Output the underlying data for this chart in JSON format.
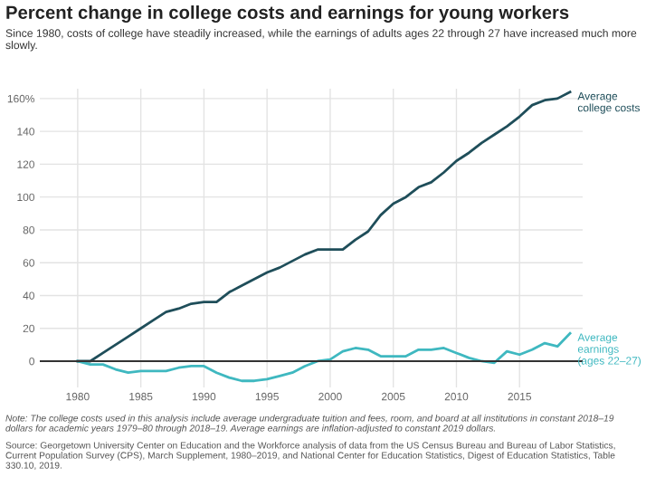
{
  "chart_data": {
    "type": "line",
    "title": "Percent change in college costs and earnings for young workers",
    "subtitle": "Since 1980, costs of college have steadily increased, while the earnings of adults ages 22 through 27 have increased much more slowly.",
    "x": [
      1980,
      1981,
      1982,
      1983,
      1984,
      1985,
      1986,
      1987,
      1988,
      1989,
      1990,
      1991,
      1992,
      1993,
      1994,
      1995,
      1996,
      1997,
      1998,
      1999,
      2000,
      2001,
      2002,
      2003,
      2004,
      2005,
      2006,
      2007,
      2008,
      2009,
      2010,
      2011,
      2012,
      2013,
      2014,
      2015,
      2016,
      2017,
      2018,
      2019
    ],
    "series": [
      {
        "name": "Average college costs",
        "color": "#1f4e5a",
        "values": [
          0,
          0,
          5,
          10,
          15,
          20,
          25,
          30,
          32,
          35,
          36,
          36,
          42,
          46,
          50,
          54,
          57,
          61,
          65,
          68,
          68,
          68,
          74,
          79,
          89,
          96,
          100,
          106,
          109,
          115,
          122,
          127,
          133,
          138,
          143,
          149,
          156,
          159,
          160,
          164
        ]
      },
      {
        "name": "Average earnings (ages 22–27)",
        "color": "#3fb8c0",
        "values": [
          0,
          -2,
          -2,
          -5,
          -7,
          -6,
          -6,
          -6,
          -4,
          -3,
          -3,
          -7,
          -10,
          -12,
          -12,
          -11,
          -9,
          -7,
          -3,
          0,
          1,
          6,
          8,
          7,
          3,
          3,
          3,
          7,
          7,
          8,
          5,
          2,
          0,
          -1,
          6,
          4,
          7,
          11,
          9,
          17
        ]
      }
    ],
    "xlim": [
      1977,
      2020
    ],
    "xticks": [
      1980,
      1985,
      1990,
      1995,
      2000,
      2005,
      2010,
      2015
    ],
    "ylim": [
      -16,
      166
    ],
    "yticks": [
      0,
      20,
      40,
      60,
      80,
      100,
      120,
      {
        "value": 140,
        "label": "140"
      },
      {
        "value": 160,
        "label": "160%"
      }
    ],
    "ref_lines": [
      {
        "axis": "y",
        "value": 0,
        "color": "#333333"
      }
    ],
    "grid": true,
    "legend": false,
    "line_style": "solid",
    "marker": "none",
    "annotations": [
      "Note: The college costs used in this analysis include average undergraduate tuition and fees, room, and board at all institutions in constant 2018–19 dollars for academic years 1979–80 through 2018–19. Average earnings are inflation-adjusted to constant 2019 dollars.",
      "Source: Georgetown University Center on Education and the Workforce analysis of data from the US Census Bureau and Bureau of Labor Statistics, Current Population Survey (CPS), March Supplement, 1980–2019, and National Center for Education Statistics, Digest of Education Statistics, Table 330.10, 2019."
    ]
  }
}
